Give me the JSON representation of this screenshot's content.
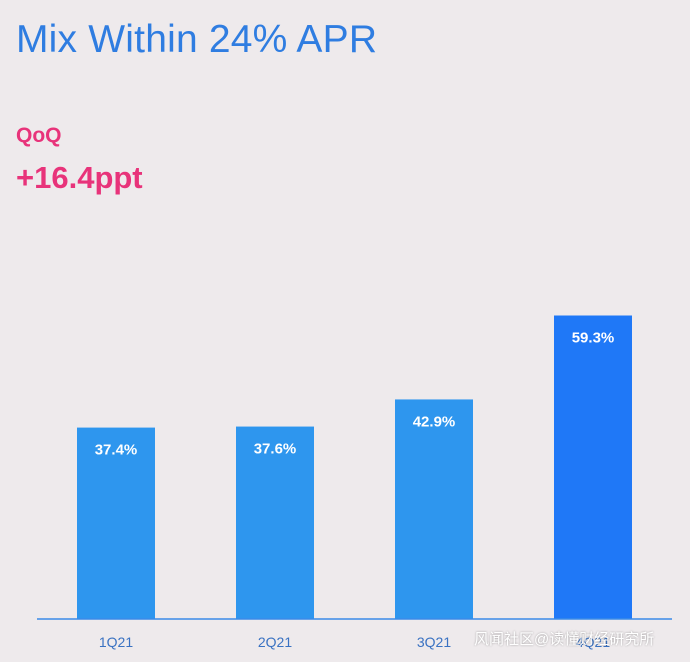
{
  "title": "Mix Within 24% APR",
  "qoq": {
    "label": "QoQ",
    "value": "+16.4ppt"
  },
  "colors": {
    "title": "#2f7de1",
    "accent": "#e8337a",
    "bar": "#2e96ee",
    "bar_highlight": "#1f78f7",
    "axis": "#3a8ae8",
    "tick": "#3a72c2"
  },
  "chart_data": {
    "type": "bar",
    "title": "Mix Within 24% APR",
    "categories": [
      "1Q21",
      "2Q21",
      "3Q21",
      "4Q21"
    ],
    "values": [
      37.4,
      37.6,
      42.9,
      59.3
    ],
    "value_labels": [
      "37.4%",
      "37.6%",
      "42.9%",
      "59.3%"
    ],
    "highlight_index": 3,
    "ylim": [
      0,
      60
    ],
    "grid": false,
    "legend": "none",
    "xlabel": "",
    "ylabel": ""
  },
  "watermark": "风闻社区@读懂财经研究所"
}
